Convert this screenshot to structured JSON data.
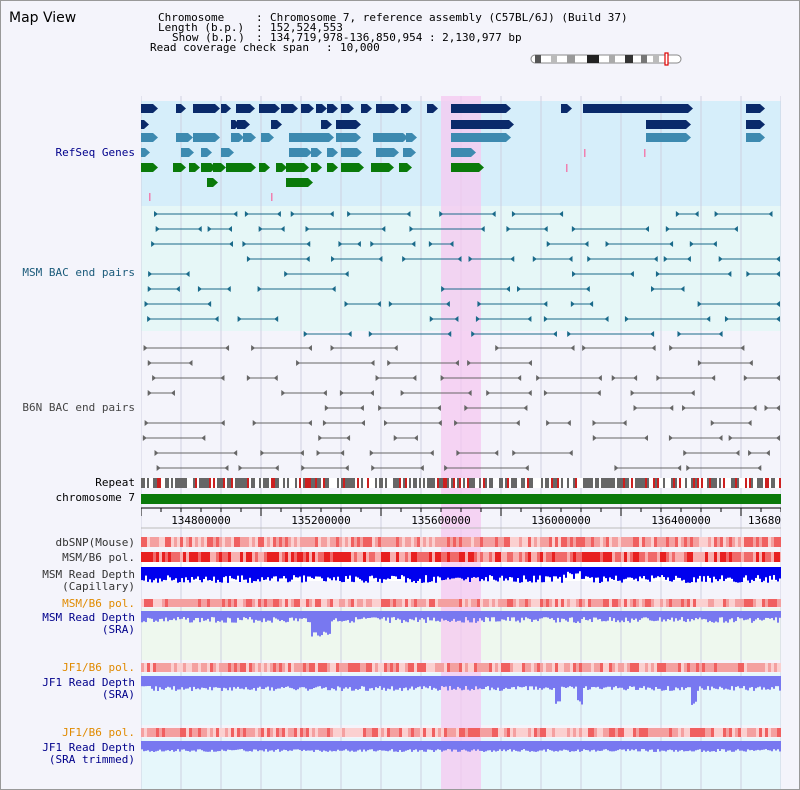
{
  "window": {
    "title": "Map View"
  },
  "header": {
    "chromosome_label": "Chromosome",
    "chromosome_value": "Chromosome 7, reference assembly (C57BL/6J) (Build 37)",
    "length_label": "Length (b.p.)",
    "length_value": "152,524,553",
    "show_label": "Show (b.p.)",
    "show_value": "134,719,978-136,850,954 : 2,130,977 bp",
    "coverage_label": "Read coverage check span",
    "coverage_value": "10,000"
  },
  "tracks": {
    "refseq": "RefSeq Genes",
    "msm_bac": "MSM BAC end pairs",
    "b6n_bac": "B6N BAC end pairs",
    "repeat": "Repeat",
    "chromosome": "chromosome 7",
    "dbsnp": "dbSNP(Mouse)",
    "msm_b6_pol_1": "MSM/B6 pol.",
    "msm_depth_cap_1": "MSM Read Depth",
    "msm_depth_cap_2": "(Capillary)",
    "msm_b6_pol_2": "MSM/B6 pol.",
    "msm_depth_sra_1": "MSM Read Depth",
    "msm_depth_sra_2": "(SRA)",
    "jf1_b6_pol_1": "JF1/B6 pol.",
    "jf1_depth_sra_1": "JF1 Read Depth",
    "jf1_depth_sra_2": "(SRA)",
    "jf1_b6_pol_2": "JF1/B6 pol.",
    "jf1_depth_trim_1": "JF1 Read Depth",
    "jf1_depth_trim_2": "(SRA trimmed)"
  },
  "axis": {
    "ticks": [
      "134800000",
      "135200000",
      "135600000",
      "136000000",
      "136400000",
      "13680"
    ]
  },
  "colors": {
    "highlight": "#f5c8f0",
    "gene_dark": "#0a2a6a",
    "gene_mid": "#3d8ab0",
    "gene_green": "#0a7a0a",
    "msm_bac": "#1a6a8a",
    "b6n_bac": "#666666",
    "chromosome_bar": "#0a7a0a",
    "depth_dark": "#0000ee",
    "depth_light": "#7878f0"
  }
}
